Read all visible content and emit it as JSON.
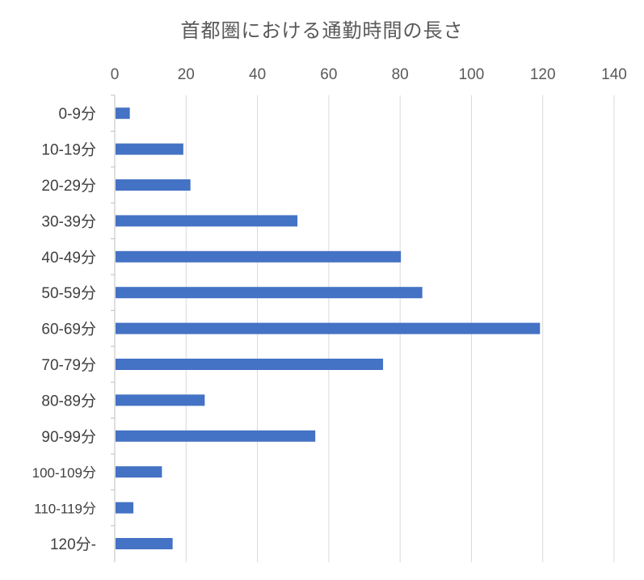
{
  "chart_data": {
    "type": "bar",
    "orientation": "horizontal",
    "title": "首都圏における通勤時間の長さ",
    "xlabel": "",
    "ylabel": "",
    "xlim": [
      0,
      140
    ],
    "xticks": [
      0,
      20,
      40,
      60,
      80,
      100,
      120,
      140
    ],
    "x_axis_position": "top",
    "grid": true,
    "categories": [
      "0-9分",
      "10-19分",
      "20-29分",
      "30-39分",
      "40-49分",
      "50-59分",
      "60-69分",
      "70-79分",
      "80-89分",
      "90-99分",
      "100-109分",
      "110-119分",
      "120分-"
    ],
    "values": [
      4,
      19,
      21,
      51,
      80,
      86,
      119,
      75,
      25,
      56,
      13,
      5,
      16
    ],
    "bar_color": "#4472C4"
  }
}
